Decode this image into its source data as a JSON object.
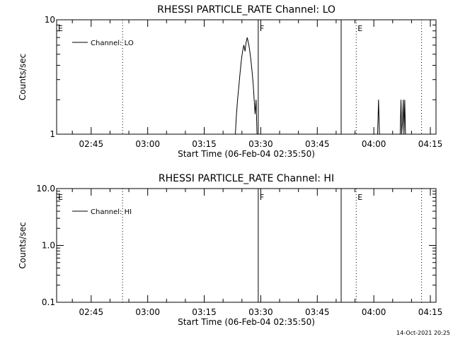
{
  "chart_data": [
    {
      "type": "line",
      "title": "RHESSI PARTICLE_RATE Channel: LO",
      "xlabel": "Start Time (06-Feb-04 02:35:50)",
      "ylabel": "Counts/sec",
      "x_unit": "time of day (hh:mm)",
      "xlim": [
        "02:35:50",
        "04:16:30"
      ],
      "ylim": [
        1,
        10
      ],
      "yscale": "log",
      "x_ticks": [
        "02:45",
        "03:00",
        "03:15",
        "03:30",
        "03:45",
        "04:00",
        "04:15"
      ],
      "y_ticks": [
        "1",
        "10"
      ],
      "legend": {
        "entries": [
          "Channel: LO"
        ],
        "position": "top-left"
      },
      "grid": false,
      "series": [
        {
          "name": "Channel: LO",
          "points": [
            [
              "03:23:15",
              1.0
            ],
            [
              "03:23:30",
              1.4
            ],
            [
              "03:23:50",
              2.0
            ],
            [
              "03:24:10",
              2.6
            ],
            [
              "03:24:30",
              3.4
            ],
            [
              "03:24:50",
              4.4
            ],
            [
              "03:25:10",
              5.3
            ],
            [
              "03:25:30",
              6.0
            ],
            [
              "03:25:50",
              5.3
            ],
            [
              "03:26:05",
              6.3
            ],
            [
              "03:26:25",
              7.0
            ],
            [
              "03:26:45",
              6.2
            ],
            [
              "03:27:00",
              5.6
            ],
            [
              "03:27:20",
              4.6
            ],
            [
              "03:27:40",
              3.6
            ],
            [
              "03:28:00",
              2.7
            ],
            [
              "03:28:15",
              2.0
            ],
            [
              "03:28:30",
              1.5
            ],
            [
              "03:28:45",
              2.0
            ],
            [
              "03:29:00",
              1.0
            ],
            [
              "04:01:00",
              1.0
            ],
            [
              "04:01:15",
              2.0
            ],
            [
              "04:01:30",
              1.0
            ],
            [
              "04:07:00",
              1.0
            ],
            [
              "04:07:12",
              2.0
            ],
            [
              "04:07:24",
              1.0
            ],
            [
              "04:07:36",
              1.25
            ],
            [
              "04:07:48",
              2.0
            ],
            [
              "04:08:00",
              1.0
            ],
            [
              "04:08:12",
              2.0
            ],
            [
              "04:08:24",
              1.0
            ]
          ]
        }
      ],
      "markers": [
        {
          "label": "E",
          "time": "02:35:50",
          "style": "dotted"
        },
        {
          "label": "",
          "time": "02:53:20",
          "style": "dotted"
        },
        {
          "label": "F",
          "time": "03:29:20",
          "style": "solid"
        },
        {
          "label": "",
          "time": "03:51:20",
          "style": "solid"
        },
        {
          "label": "E",
          "time": "03:55:20",
          "style": "dotted"
        },
        {
          "label": "",
          "time": "04:12:40",
          "style": "dotted"
        }
      ]
    },
    {
      "type": "line",
      "title": "RHESSI PARTICLE_RATE Channel: HI",
      "xlabel": "Start Time (06-Feb-04 02:35:50)",
      "ylabel": "Counts/sec",
      "x_unit": "time of day (hh:mm)",
      "xlim": [
        "02:35:50",
        "04:16:30"
      ],
      "ylim": [
        0.1,
        10.0
      ],
      "yscale": "log",
      "x_ticks": [
        "02:45",
        "03:00",
        "03:15",
        "03:30",
        "03:45",
        "04:00",
        "04:15"
      ],
      "y_ticks": [
        "0.1",
        "1.0",
        "10.0"
      ],
      "legend": {
        "entries": [
          "Channel: HI"
        ],
        "position": "top-left"
      },
      "grid": false,
      "series": [
        {
          "name": "Channel: HI",
          "points": []
        }
      ],
      "markers": [
        {
          "label": "E",
          "time": "02:35:50",
          "style": "dotted"
        },
        {
          "label": "",
          "time": "02:53:20",
          "style": "dotted"
        },
        {
          "label": "F",
          "time": "03:29:20",
          "style": "solid"
        },
        {
          "label": "",
          "time": "03:51:20",
          "style": "solid"
        },
        {
          "label": "E",
          "time": "03:55:20",
          "style": "dotted"
        },
        {
          "label": "",
          "time": "04:12:40",
          "style": "dotted"
        }
      ]
    }
  ],
  "footer": {
    "timestamp": "14-Oct-2021 20:25"
  }
}
